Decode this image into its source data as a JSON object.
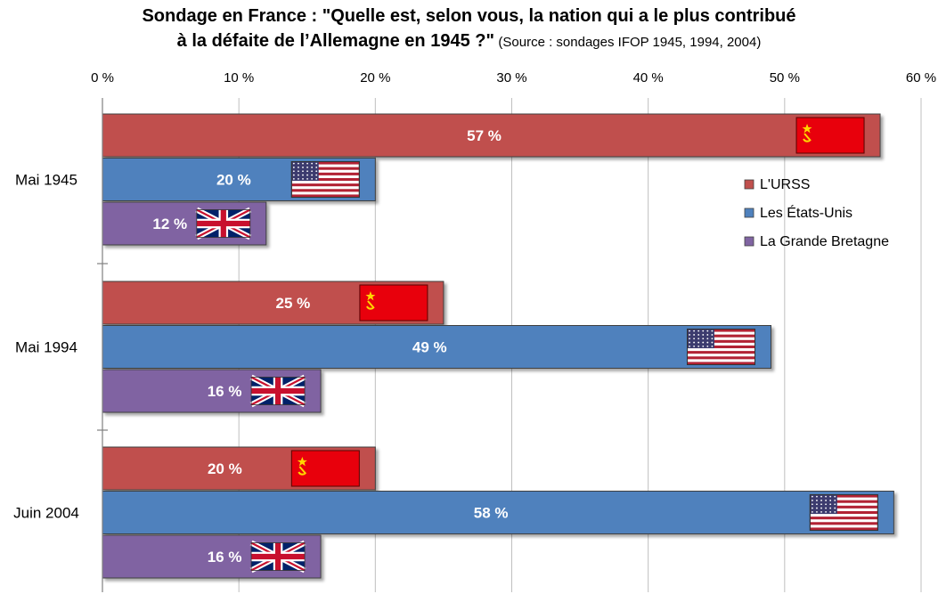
{
  "chart_data": {
    "type": "bar",
    "orientation": "horizontal",
    "title_line1": "Sondage en France : \"Quelle est, selon vous, la nation qui a le plus contribué",
    "title_line2": "à la défaite de l’Allemagne en 1945 ?\"",
    "subtitle": "(Source : sondages IFOP 1945, 1994, 2004)",
    "categories": [
      "Mai 1945",
      "Mai 1994",
      "Juin 2004"
    ],
    "series": [
      {
        "name": "L'URSS",
        "color": "#c0504d",
        "flag": "ussr-flag",
        "values": [
          57,
          25,
          20
        ]
      },
      {
        "name": "Les États-Unis",
        "color": "#4f81bd",
        "flag": "usa-flag",
        "values": [
          20,
          49,
          58
        ]
      },
      {
        "name": "La Grande Bretagne",
        "color": "#8064a2",
        "flag": "uk-flag",
        "values": [
          12,
          16,
          16
        ]
      }
    ],
    "value_suffix": " %",
    "xlim": [
      0,
      60
    ],
    "xticks": [
      {
        "value": 0,
        "label": "0 %"
      },
      {
        "value": 10,
        "label": "10 %"
      },
      {
        "value": 20,
        "label": "20 %"
      },
      {
        "value": 30,
        "label": "30 %"
      },
      {
        "value": 40,
        "label": "40 %"
      },
      {
        "value": 50,
        "label": "50 %"
      },
      {
        "value": 60,
        "label": "60 %"
      }
    ],
    "x_axis_position": "top",
    "grid": true,
    "legend_position": "right"
  }
}
